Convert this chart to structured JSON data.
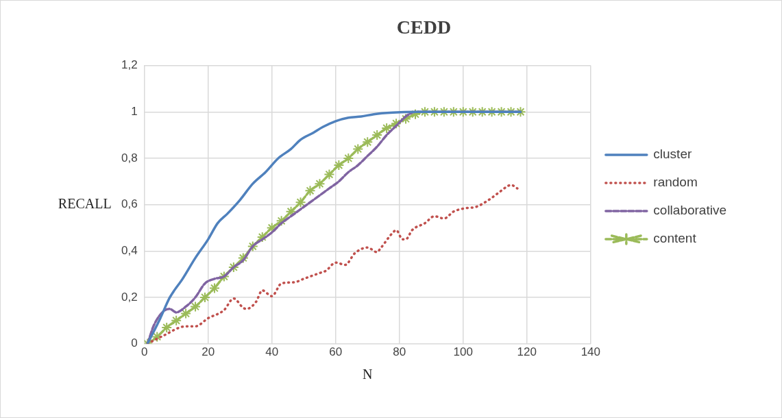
{
  "chart_data": {
    "type": "line",
    "title": "CEDD",
    "xlabel": "N",
    "ylabel": "RECALL",
    "xlim": [
      0,
      140
    ],
    "xticks": [
      0,
      20,
      40,
      60,
      80,
      100,
      120,
      140
    ],
    "ylim": [
      0,
      1.2
    ],
    "yticks": [
      0,
      {
        "value": 0.2,
        "label": "0,2"
      },
      {
        "value": 0.4,
        "label": "0,4"
      },
      {
        "value": 0.6,
        "label": "0,6"
      },
      {
        "value": 0.8,
        "label": "0,8"
      },
      1,
      {
        "value": 1.2,
        "label": "1,2"
      }
    ],
    "grid": true,
    "legend": "right",
    "series": [
      {
        "name": "cluster",
        "color": "#4f81bd",
        "line_style": "solid",
        "marker": "none",
        "x": [
          1,
          5,
          8,
          12,
          16,
          20,
          23,
          26,
          30,
          34,
          38,
          42,
          46,
          49,
          53,
          56,
          60,
          64,
          68,
          72,
          78,
          85,
          118
        ],
        "values": [
          0,
          0.11,
          0.2,
          0.28,
          0.37,
          0.45,
          0.52,
          0.56,
          0.62,
          0.69,
          0.74,
          0.8,
          0.84,
          0.88,
          0.91,
          0.935,
          0.96,
          0.975,
          0.98,
          0.99,
          0.997,
          1,
          1
        ]
      },
      {
        "name": "random",
        "color": "#c0504d",
        "line_style": "dotted",
        "marker": "none",
        "x": [
          1,
          6,
          13,
          16,
          20,
          25,
          28,
          31,
          32,
          35,
          37,
          40,
          43,
          47,
          50,
          55,
          57,
          60,
          63,
          66,
          70,
          73,
          74,
          78,
          79,
          81,
          82,
          84,
          88,
          91,
          94,
          97,
          101,
          104,
          108,
          111,
          114,
          115,
          117
        ],
        "values": [
          0,
          0.035,
          0.075,
          0.075,
          0.11,
          0.145,
          0.195,
          0.155,
          0.15,
          0.18,
          0.23,
          0.205,
          0.26,
          0.265,
          0.28,
          0.305,
          0.315,
          0.35,
          0.34,
          0.39,
          0.415,
          0.395,
          0.41,
          0.48,
          0.49,
          0.45,
          0.45,
          0.49,
          0.52,
          0.55,
          0.54,
          0.57,
          0.585,
          0.59,
          0.62,
          0.65,
          0.68,
          0.685,
          0.67
        ]
      },
      {
        "name": "collaborative",
        "color": "#8064a2",
        "line_style": "dashed",
        "marker": "none",
        "x": [
          1,
          3,
          6,
          8,
          10,
          13,
          16,
          19,
          22,
          25,
          28,
          31,
          34,
          37,
          40,
          43,
          46,
          49,
          52,
          55,
          58,
          61,
          64,
          67,
          70,
          73,
          76,
          79,
          82,
          85,
          118
        ],
        "values": [
          0,
          0.08,
          0.14,
          0.15,
          0.135,
          0.16,
          0.2,
          0.26,
          0.28,
          0.29,
          0.33,
          0.36,
          0.42,
          0.45,
          0.48,
          0.52,
          0.55,
          0.58,
          0.61,
          0.64,
          0.67,
          0.7,
          0.74,
          0.77,
          0.81,
          0.85,
          0.9,
          0.94,
          0.98,
          1,
          1
        ]
      },
      {
        "name": "content",
        "color": "#9bbb59",
        "line_style": "dashed",
        "marker": "cross",
        "x": [
          1,
          4,
          7,
          10,
          13,
          16,
          19,
          22,
          25,
          28,
          31,
          34,
          37,
          40,
          43,
          46,
          49,
          52,
          55,
          58,
          61,
          64,
          67,
          70,
          73,
          76,
          79,
          82,
          85,
          88,
          91,
          94,
          97,
          100,
          103,
          106,
          109,
          112,
          115,
          118
        ],
        "values": [
          0,
          0.03,
          0.07,
          0.1,
          0.13,
          0.16,
          0.2,
          0.24,
          0.29,
          0.33,
          0.37,
          0.42,
          0.46,
          0.5,
          0.53,
          0.57,
          0.61,
          0.66,
          0.69,
          0.73,
          0.77,
          0.8,
          0.84,
          0.87,
          0.9,
          0.93,
          0.95,
          0.97,
          0.99,
          1,
          1,
          1,
          1,
          1,
          1,
          1,
          1,
          1,
          1,
          1
        ]
      }
    ]
  }
}
